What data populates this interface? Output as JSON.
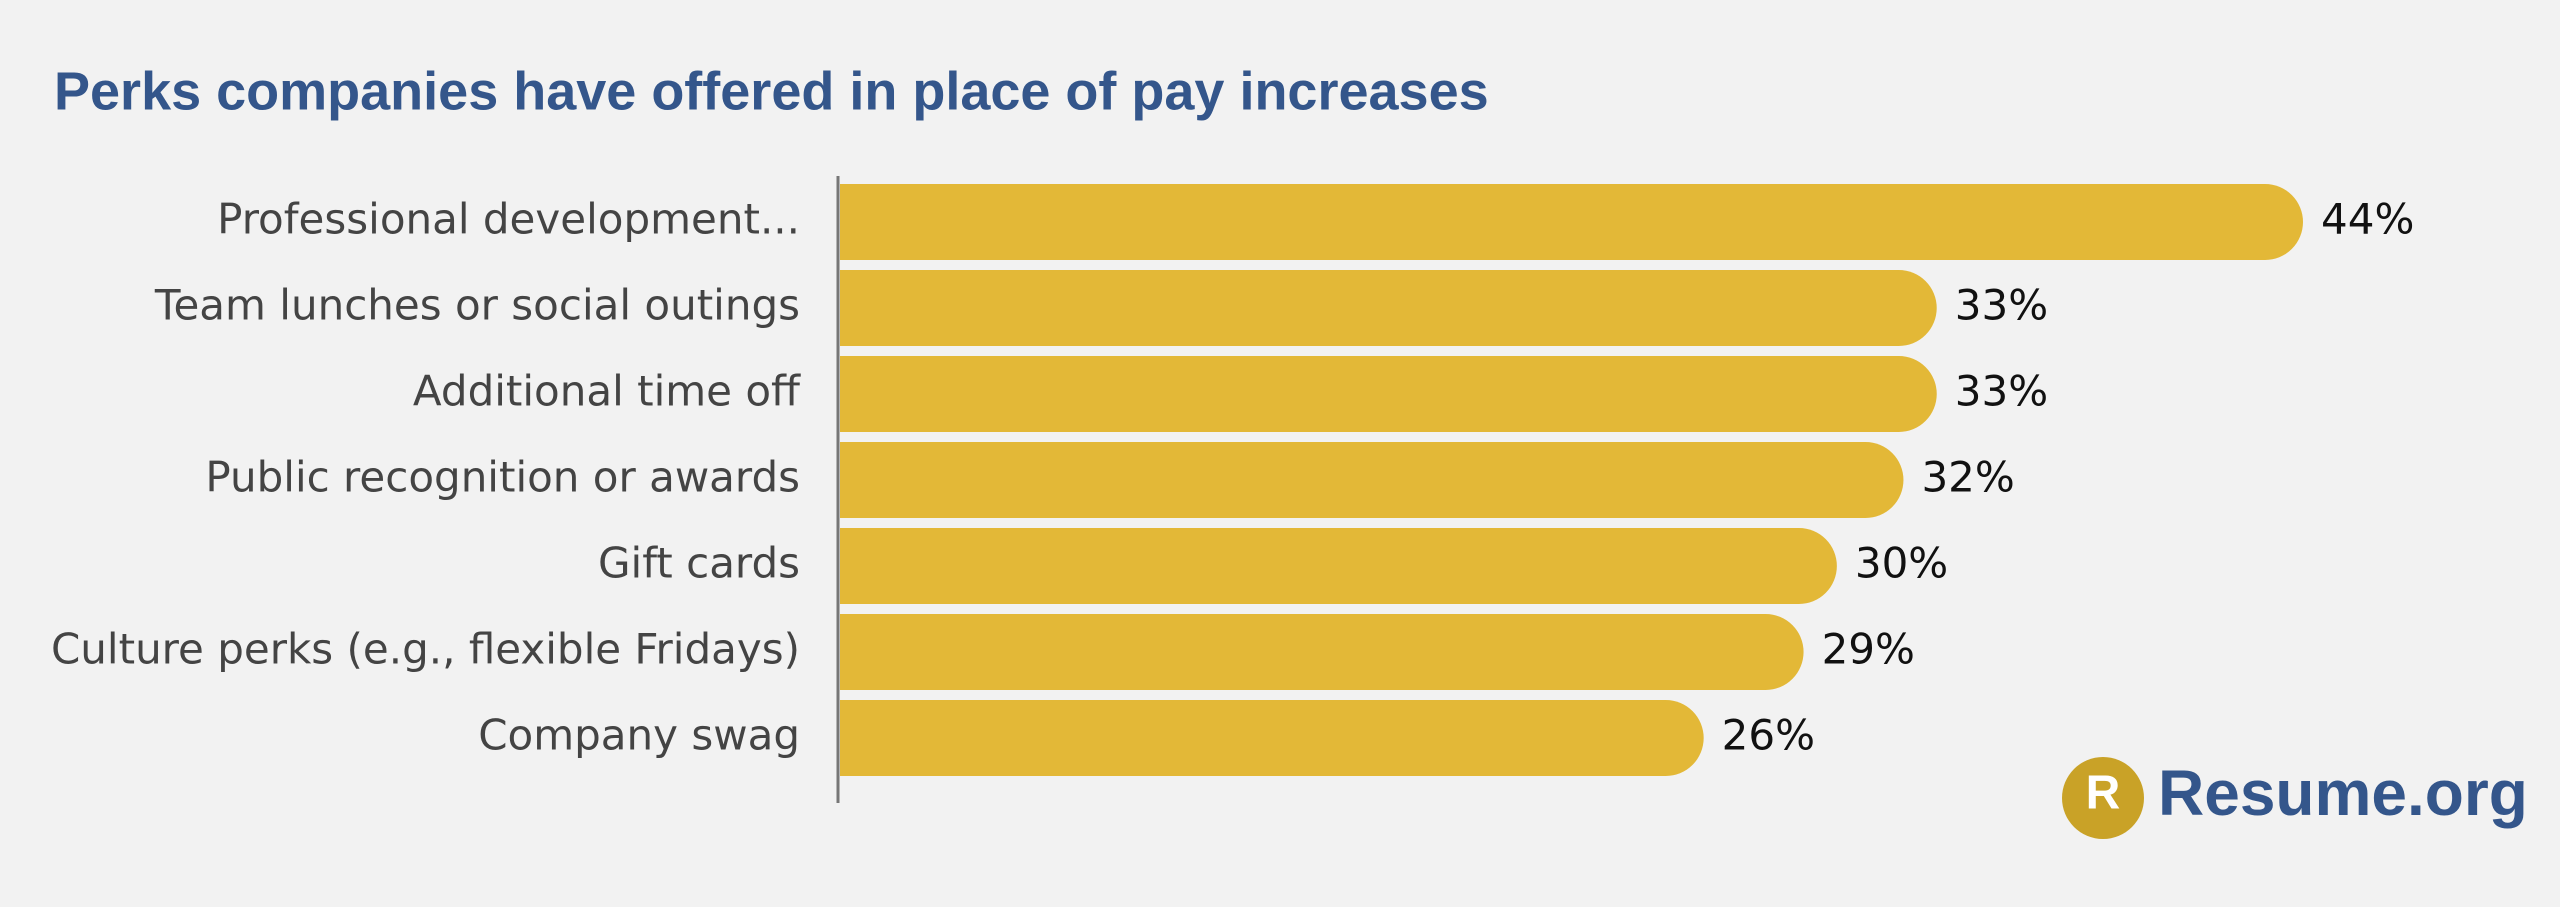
{
  "chart_data": {
    "type": "bar",
    "orientation": "horizontal",
    "title": "Perks companies have offered in place of pay increases",
    "categories": [
      "Professional development...",
      "Team lunches or social outings",
      "Additional time off",
      "Public recognition or awards",
      "Gift cards",
      "Culture perks (e.g., flexible Fridays)",
      "Company swag"
    ],
    "values": [
      44,
      33,
      33,
      32,
      30,
      29,
      26
    ],
    "value_labels": [
      "44%",
      "33%",
      "33%",
      "32%",
      "30%",
      "29%",
      "26%"
    ],
    "color": "#e3b837"
  },
  "logo": {
    "mark": "R",
    "text": "Resume.org"
  }
}
